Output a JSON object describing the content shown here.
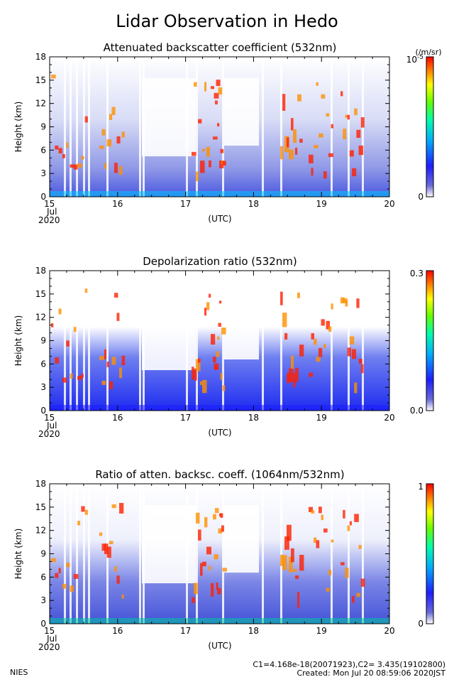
{
  "title": "Lidar Observation in Hedo",
  "panels": [
    {
      "title": "Attenuated backscatter coefficient (532nm)",
      "ylabel": "Height (km)",
      "colorbar": {
        "unit": "(/m/sr)",
        "max_label": "10",
        "max_exp": "-5",
        "min_label": "0"
      }
    },
    {
      "title": "Depolarization ratio (532nm)",
      "ylabel": "Height (km)",
      "colorbar": {
        "unit": "",
        "max_label": "0.3",
        "max_exp": "",
        "min_label": "0.0"
      }
    },
    {
      "title": "Ratio of atten. backsc. coeff. (1064nm/532nm)",
      "ylabel": "Height (km)",
      "colorbar": {
        "unit": "",
        "max_label": "1",
        "max_exp": "",
        "min_label": "0"
      }
    }
  ],
  "axis": {
    "y_ticks": [
      "0",
      "3",
      "6",
      "9",
      "12",
      "15",
      "18"
    ],
    "x_ticks": [
      "15",
      "16",
      "17",
      "18",
      "19",
      "20"
    ],
    "x_sub_month": "Jul",
    "x_sub_year": "2020",
    "x_label": "(UTC)"
  },
  "footer": {
    "org": "NIES",
    "calib": "C1=4.168e-18(20071923),C2= 3.435(19102800)",
    "created": "Created: Mon Jul 20 08:59:06 2020JST"
  },
  "chart_data": [
    {
      "type": "heatmap",
      "title": "Attenuated backscatter coefficient (532nm)",
      "ylabel": "Height (km)",
      "xlabel": "(UTC)",
      "x_range": [
        "2020-07-15",
        "2020-07-20"
      ],
      "ylim": [
        0,
        18
      ],
      "color_scale": [
        0,
        1e-05
      ],
      "color_unit": "/m/sr",
      "colormap": [
        "#ffffff",
        "#1010c0",
        "#1e3cff",
        "#00c8ff",
        "#00ff64",
        "#ffff00",
        "#ff8000",
        "#ff0000"
      ]
    },
    {
      "type": "heatmap",
      "title": "Depolarization ratio (532nm)",
      "ylabel": "Height (km)",
      "xlabel": "(UTC)",
      "x_range": [
        "2020-07-15",
        "2020-07-20"
      ],
      "ylim": [
        0,
        18
      ],
      "color_scale": [
        0.0,
        0.3
      ],
      "colormap": [
        "#ffffff",
        "#1010c0",
        "#1e3cff",
        "#00c8ff",
        "#00ff64",
        "#ffff00",
        "#ff8000",
        "#ff0000"
      ]
    },
    {
      "type": "heatmap",
      "title": "Ratio of atten. backsc. coeff. (1064nm/532nm)",
      "ylabel": "Height (km)",
      "xlabel": "(UTC)",
      "x_range": [
        "2020-07-15",
        "2020-07-20"
      ],
      "ylim": [
        0,
        18
      ],
      "color_scale": [
        0,
        1
      ],
      "colormap": [
        "#ffffff",
        "#1010c0",
        "#1e3cff",
        "#00c8ff",
        "#00ff64",
        "#ffff00",
        "#ff8000",
        "#ff0000"
      ]
    }
  ]
}
